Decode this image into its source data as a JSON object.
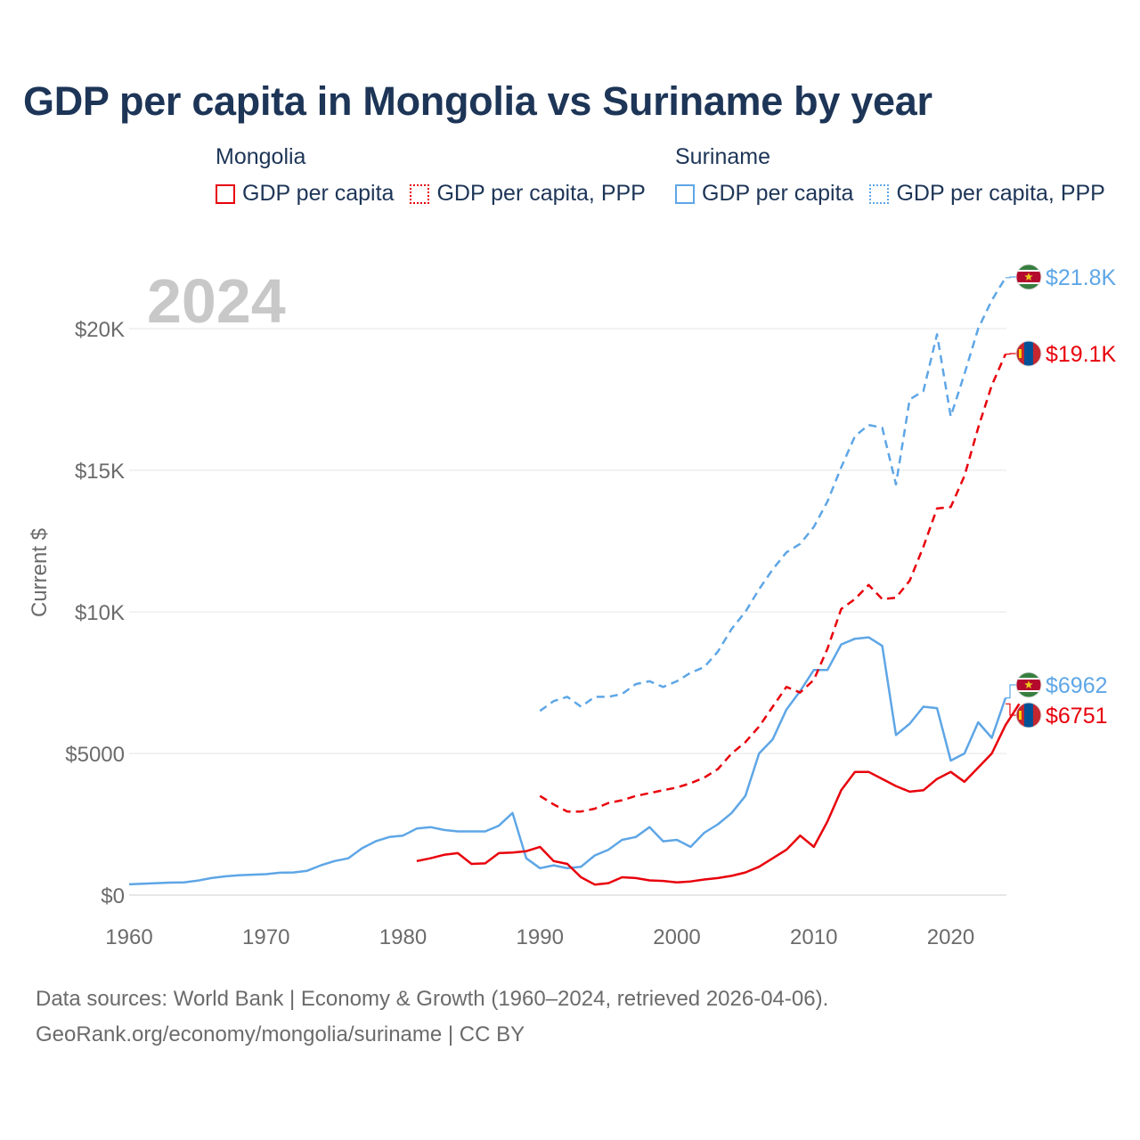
{
  "title": "GDP per capita in Mongolia vs Suriname by year",
  "legend": {
    "mongolia": {
      "name": "Mongolia",
      "gdp": "GDP per capita",
      "ppp": "GDP per capita, PPP",
      "color": "#e8000b"
    },
    "suriname": {
      "name": "Suriname",
      "gdp": "GDP per capita",
      "ppp": "GDP per capita, PPP",
      "color": "#5ea6e6"
    }
  },
  "source": {
    "line1": "Data sources: World Bank | Economy & Growth (1960–2024, retrieved 2026-04-06).",
    "line2": "GeoRank.org/economy/mongolia/suriname | CC BY"
  },
  "chart_data": {
    "type": "line",
    "year_label": "2024",
    "ylabel": "Current $",
    "xlim": [
      1960,
      2024
    ],
    "ylim": [
      0,
      22000
    ],
    "x_ticks": [
      1960,
      1970,
      1980,
      1990,
      2000,
      2010,
      2020
    ],
    "y_ticks": [
      {
        "value": 0,
        "label": "$0"
      },
      {
        "value": 5000,
        "label": "$5000"
      },
      {
        "value": 10000,
        "label": "$10K"
      },
      {
        "value": 15000,
        "label": "$15K"
      },
      {
        "value": 20000,
        "label": "$20K"
      }
    ],
    "end_labels": [
      {
        "series": "suriname_ppp",
        "label": "$21.8K",
        "flag": "suriname"
      },
      {
        "series": "mongolia_ppp",
        "label": "$19.1K",
        "flag": "mongolia"
      },
      {
        "series": "suriname_gdp",
        "label": "$6962",
        "flag": "suriname"
      },
      {
        "series": "mongolia_gdp",
        "label": "$6751",
        "flag": "mongolia"
      }
    ],
    "series": [
      {
        "id": "suriname_gdp",
        "name": "Suriname GDP per capita",
        "color": "#5ea6e6",
        "dashed": false,
        "start": 1960,
        "values": [
          380,
          400,
          420,
          440,
          450,
          510,
          600,
          660,
          700,
          720,
          740,
          790,
          800,
          860,
          1050,
          1200,
          1300,
          1650,
          1900,
          2050,
          2100,
          2350,
          2400,
          2300,
          2250,
          2250,
          2250,
          2450,
          2900,
          1300,
          950,
          1050,
          950,
          1000,
          1400,
          1600,
          1950,
          2050,
          2400,
          1900,
          1950,
          1700,
          2200,
          2500,
          2900,
          3500,
          5000,
          5500,
          6550,
          7200,
          7950,
          7950,
          8850,
          9050,
          9100,
          8800,
          5650,
          6050,
          6650,
          6600,
          4750,
          5000,
          6100,
          5550,
          6962
        ]
      },
      {
        "id": "mongolia_gdp",
        "name": "Mongolia GDP per capita",
        "color": "#e8000b",
        "dashed": false,
        "start": 1981,
        "values": [
          1200,
          1300,
          1420,
          1480,
          1100,
          1120,
          1480,
          1500,
          1550,
          1700,
          1200,
          1100,
          630,
          370,
          420,
          630,
          600,
          520,
          500,
          450,
          480,
          550,
          600,
          680,
          800,
          1000,
          1300,
          1600,
          2100,
          1700,
          2600,
          3700,
          4350,
          4350,
          4100,
          3850,
          3650,
          3700,
          4100,
          4350,
          4000,
          4500,
          5000,
          6000,
          6751
        ]
      },
      {
        "id": "suriname_ppp",
        "name": "Suriname GDP per capita, PPP",
        "color": "#5ea6e6",
        "dashed": true,
        "start": 1990,
        "values": [
          6500,
          6850,
          7000,
          6650,
          7000,
          7000,
          7100,
          7450,
          7550,
          7350,
          7550,
          7850,
          8050,
          8600,
          9400,
          10000,
          10800,
          11500,
          12100,
          12400,
          13000,
          13900,
          15100,
          16200,
          16600,
          16500,
          14500,
          17500,
          17800,
          19800,
          16900,
          18400,
          20000,
          21000,
          21800
        ]
      },
      {
        "id": "mongolia_ppp",
        "name": "Mongolia GDP per capita, PPP",
        "color": "#e8000b",
        "dashed": true,
        "start": 1990,
        "values": [
          3500,
          3200,
          2950,
          2950,
          3050,
          3250,
          3350,
          3500,
          3600,
          3700,
          3800,
          3950,
          4150,
          4450,
          5000,
          5400,
          5950,
          6650,
          7350,
          7150,
          7600,
          8700,
          10100,
          10450,
          10950,
          10450,
          10500,
          11100,
          12300,
          13650,
          13700,
          14800,
          16500,
          18000,
          19100
        ]
      }
    ]
  }
}
